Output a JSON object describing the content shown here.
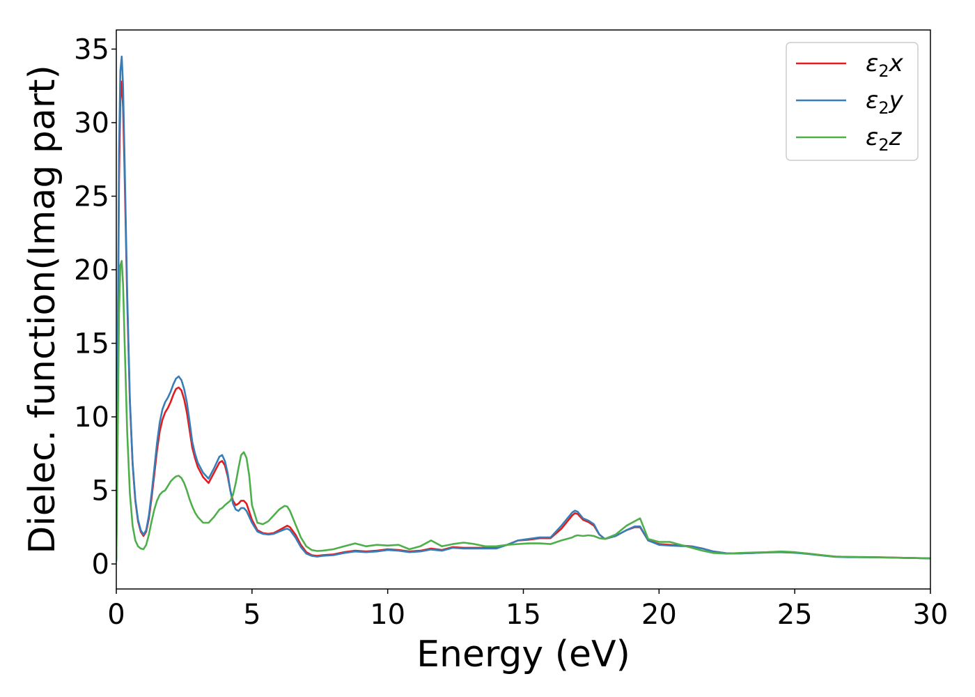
{
  "chart_data": {
    "type": "line",
    "xlabel": "Energy (eV)",
    "ylabel": "Dielec. function(Imag part)",
    "xlim": [
      0,
      30
    ],
    "ylim": [
      -1.7,
      36.3
    ],
    "xticks": [
      0,
      5,
      10,
      15,
      20,
      25,
      30
    ],
    "yticks": [
      0,
      5,
      10,
      15,
      20,
      25,
      30,
      35
    ],
    "grid": false,
    "legend_position": "top-right",
    "series": [
      {
        "name": "ε₂x",
        "legend": {
          "base": "ε",
          "sub": "2",
          "suffix": "x"
        },
        "color": "#e41a1c",
        "x": [
          0,
          0.05,
          0.1,
          0.15,
          0.2,
          0.25,
          0.3,
          0.4,
          0.5,
          0.6,
          0.7,
          0.8,
          0.9,
          1.0,
          1.1,
          1.2,
          1.3,
          1.4,
          1.5,
          1.6,
          1.7,
          1.8,
          1.9,
          2.0,
          2.1,
          2.2,
          2.3,
          2.4,
          2.5,
          2.6,
          2.7,
          2.8,
          2.9,
          3.0,
          3.2,
          3.4,
          3.6,
          3.8,
          3.9,
          4.0,
          4.1,
          4.2,
          4.3,
          4.4,
          4.5,
          4.6,
          4.7,
          4.8,
          5.0,
          5.2,
          5.4,
          5.6,
          5.8,
          6.0,
          6.2,
          6.3,
          6.4,
          6.6,
          6.8,
          7.0,
          7.2,
          7.4,
          7.6,
          8.0,
          8.4,
          8.8,
          9.2,
          9.6,
          10.0,
          10.4,
          10.8,
          11.2,
          11.6,
          12.0,
          12.4,
          12.8,
          13.2,
          13.6,
          14.0,
          14.4,
          14.8,
          15.2,
          15.6,
          16.0,
          16.4,
          16.8,
          16.9,
          17.0,
          17.2,
          17.4,
          17.6,
          17.8,
          18.0,
          18.4,
          18.8,
          19.1,
          19.3,
          19.6,
          20.0,
          20.4,
          20.8,
          21.2,
          21.6,
          22.0,
          22.5,
          23.0,
          23.5,
          24.0,
          24.5,
          25.0,
          25.5,
          26.0,
          26.5,
          27.0,
          27.5,
          28.0,
          28.5,
          29.0,
          29.5,
          30.0
        ],
        "y": [
          0.3,
          12.0,
          26.0,
          31.5,
          32.8,
          31.0,
          27.0,
          18.0,
          11.0,
          6.8,
          4.3,
          2.9,
          2.2,
          1.9,
          2.2,
          3.1,
          4.5,
          6.1,
          7.7,
          9.0,
          9.8,
          10.3,
          10.6,
          11.0,
          11.5,
          11.9,
          12.0,
          11.8,
          11.2,
          10.3,
          9.1,
          7.9,
          7.2,
          6.6,
          5.9,
          5.5,
          6.2,
          6.9,
          7.0,
          6.7,
          6.0,
          5.0,
          4.3,
          4.0,
          4.1,
          4.3,
          4.3,
          4.1,
          3.0,
          2.3,
          2.1,
          2.05,
          2.1,
          2.3,
          2.5,
          2.6,
          2.5,
          2.0,
          1.3,
          0.8,
          0.6,
          0.55,
          0.6,
          0.65,
          0.8,
          0.9,
          0.85,
          0.9,
          1.0,
          0.95,
          0.85,
          0.9,
          1.05,
          0.95,
          1.15,
          1.1,
          1.1,
          1.1,
          1.1,
          1.3,
          1.6,
          1.65,
          1.75,
          1.75,
          2.4,
          3.3,
          3.45,
          3.4,
          3.0,
          2.85,
          2.6,
          2.0,
          1.7,
          1.9,
          2.3,
          2.5,
          2.5,
          1.6,
          1.35,
          1.3,
          1.25,
          1.2,
          1.05,
          0.85,
          0.72,
          0.72,
          0.75,
          0.8,
          0.8,
          0.78,
          0.7,
          0.6,
          0.5,
          0.48,
          0.47,
          0.46,
          0.44,
          0.42,
          0.4,
          0.38
        ]
      },
      {
        "name": "ε₂y",
        "legend": {
          "base": "ε",
          "sub": "2",
          "suffix": "y"
        },
        "color": "#377eb8",
        "x": [
          0,
          0.05,
          0.1,
          0.15,
          0.2,
          0.25,
          0.3,
          0.4,
          0.5,
          0.6,
          0.7,
          0.8,
          0.9,
          1.0,
          1.1,
          1.2,
          1.3,
          1.4,
          1.5,
          1.6,
          1.7,
          1.8,
          1.9,
          2.0,
          2.1,
          2.2,
          2.3,
          2.4,
          2.5,
          2.6,
          2.7,
          2.8,
          2.9,
          3.0,
          3.2,
          3.4,
          3.6,
          3.8,
          3.9,
          4.0,
          4.1,
          4.2,
          4.3,
          4.4,
          4.5,
          4.6,
          4.7,
          4.8,
          5.0,
          5.2,
          5.4,
          5.6,
          5.8,
          6.0,
          6.2,
          6.3,
          6.4,
          6.6,
          6.8,
          7.0,
          7.2,
          7.4,
          7.6,
          8.0,
          8.4,
          8.8,
          9.2,
          9.6,
          10.0,
          10.4,
          10.8,
          11.2,
          11.6,
          12.0,
          12.4,
          12.8,
          13.2,
          13.6,
          14.0,
          14.4,
          14.8,
          15.2,
          15.6,
          16.0,
          16.4,
          16.8,
          16.9,
          17.0,
          17.2,
          17.4,
          17.6,
          17.8,
          18.0,
          18.4,
          18.8,
          19.1,
          19.3,
          19.6,
          20.0,
          20.4,
          20.8,
          21.2,
          21.6,
          22.0,
          22.5,
          23.0,
          23.5,
          24.0,
          24.5,
          25.0,
          25.5,
          26.0,
          26.5,
          27.0,
          27.5,
          28.0,
          28.5,
          29.0,
          29.5,
          30.0
        ],
        "y": [
          0.3,
          13.0,
          28.0,
          33.5,
          34.5,
          32.5,
          28.0,
          18.5,
          11.2,
          6.9,
          4.4,
          3.0,
          2.3,
          2.0,
          2.3,
          3.3,
          4.8,
          6.5,
          8.2,
          9.6,
          10.5,
          11.0,
          11.3,
          11.7,
          12.2,
          12.6,
          12.75,
          12.5,
          11.9,
          11.0,
          9.7,
          8.3,
          7.5,
          6.9,
          6.2,
          5.8,
          6.5,
          7.3,
          7.4,
          7.0,
          6.2,
          5.0,
          4.1,
          3.7,
          3.6,
          3.8,
          3.8,
          3.6,
          2.8,
          2.2,
          2.05,
          2.0,
          2.05,
          2.2,
          2.35,
          2.4,
          2.3,
          1.8,
          1.15,
          0.7,
          0.55,
          0.5,
          0.55,
          0.6,
          0.75,
          0.85,
          0.8,
          0.85,
          0.95,
          0.9,
          0.8,
          0.85,
          0.98,
          0.9,
          1.1,
          1.05,
          1.05,
          1.05,
          1.05,
          1.3,
          1.6,
          1.7,
          1.8,
          1.8,
          2.6,
          3.5,
          3.62,
          3.55,
          3.1,
          2.95,
          2.7,
          2.0,
          1.7,
          1.9,
          2.3,
          2.55,
          2.55,
          1.6,
          1.3,
          1.25,
          1.22,
          1.2,
          1.05,
          0.85,
          0.72,
          0.72,
          0.75,
          0.78,
          0.8,
          0.76,
          0.68,
          0.58,
          0.48,
          0.46,
          0.46,
          0.45,
          0.43,
          0.41,
          0.4,
          0.37
        ]
      },
      {
        "name": "ε₂z",
        "legend": {
          "base": "ε",
          "sub": "2",
          "suffix": "z"
        },
        "color": "#4daf4a",
        "x": [
          0,
          0.05,
          0.1,
          0.15,
          0.2,
          0.25,
          0.3,
          0.4,
          0.5,
          0.6,
          0.7,
          0.8,
          0.9,
          1.0,
          1.1,
          1.2,
          1.3,
          1.4,
          1.5,
          1.6,
          1.7,
          1.8,
          1.9,
          2.0,
          2.1,
          2.2,
          2.3,
          2.4,
          2.5,
          2.6,
          2.7,
          2.8,
          2.9,
          3.0,
          3.2,
          3.4,
          3.6,
          3.8,
          3.9,
          4.0,
          4.2,
          4.3,
          4.4,
          4.5,
          4.6,
          4.7,
          4.8,
          4.9,
          5.0,
          5.2,
          5.4,
          5.6,
          5.8,
          6.0,
          6.2,
          6.3,
          6.4,
          6.6,
          6.8,
          7.0,
          7.2,
          7.4,
          7.6,
          8.0,
          8.4,
          8.8,
          9.2,
          9.6,
          10.0,
          10.4,
          10.8,
          11.2,
          11.6,
          12.0,
          12.4,
          12.8,
          13.2,
          13.6,
          14.0,
          14.4,
          14.8,
          15.2,
          15.6,
          16.0,
          16.4,
          16.8,
          16.9,
          17.0,
          17.2,
          17.4,
          17.6,
          17.8,
          18.0,
          18.4,
          18.8,
          19.1,
          19.3,
          19.6,
          20.0,
          20.4,
          20.8,
          21.2,
          21.6,
          22.0,
          22.5,
          23.0,
          23.5,
          24.0,
          24.5,
          25.0,
          25.5,
          26.0,
          26.5,
          27.0,
          27.5,
          28.0,
          28.5,
          29.0,
          29.5,
          30.0
        ],
        "y": [
          0.2,
          8.0,
          17.0,
          20.3,
          20.6,
          19.0,
          15.5,
          9.0,
          4.8,
          2.6,
          1.6,
          1.2,
          1.05,
          1.0,
          1.3,
          2.0,
          2.9,
          3.7,
          4.3,
          4.7,
          4.9,
          5.0,
          5.3,
          5.6,
          5.8,
          5.95,
          6.0,
          5.85,
          5.5,
          5.0,
          4.4,
          3.9,
          3.5,
          3.2,
          2.8,
          2.8,
          3.2,
          3.7,
          3.8,
          4.0,
          4.3,
          4.7,
          5.5,
          6.5,
          7.4,
          7.6,
          7.2,
          6.0,
          4.0,
          2.8,
          2.7,
          2.9,
          3.3,
          3.7,
          3.95,
          3.9,
          3.6,
          2.7,
          1.8,
          1.2,
          0.95,
          0.88,
          0.9,
          1.0,
          1.2,
          1.4,
          1.2,
          1.3,
          1.25,
          1.3,
          1.0,
          1.2,
          1.6,
          1.2,
          1.35,
          1.45,
          1.35,
          1.2,
          1.2,
          1.3,
          1.35,
          1.4,
          1.4,
          1.35,
          1.6,
          1.8,
          1.9,
          1.95,
          1.9,
          1.95,
          1.9,
          1.75,
          1.7,
          2.0,
          2.6,
          2.9,
          3.1,
          1.7,
          1.5,
          1.5,
          1.3,
          1.1,
          0.9,
          0.75,
          0.7,
          0.75,
          0.78,
          0.8,
          0.85,
          0.8,
          0.7,
          0.6,
          0.5,
          0.48,
          0.46,
          0.45,
          0.43,
          0.42,
          0.4,
          0.38
        ]
      }
    ]
  }
}
